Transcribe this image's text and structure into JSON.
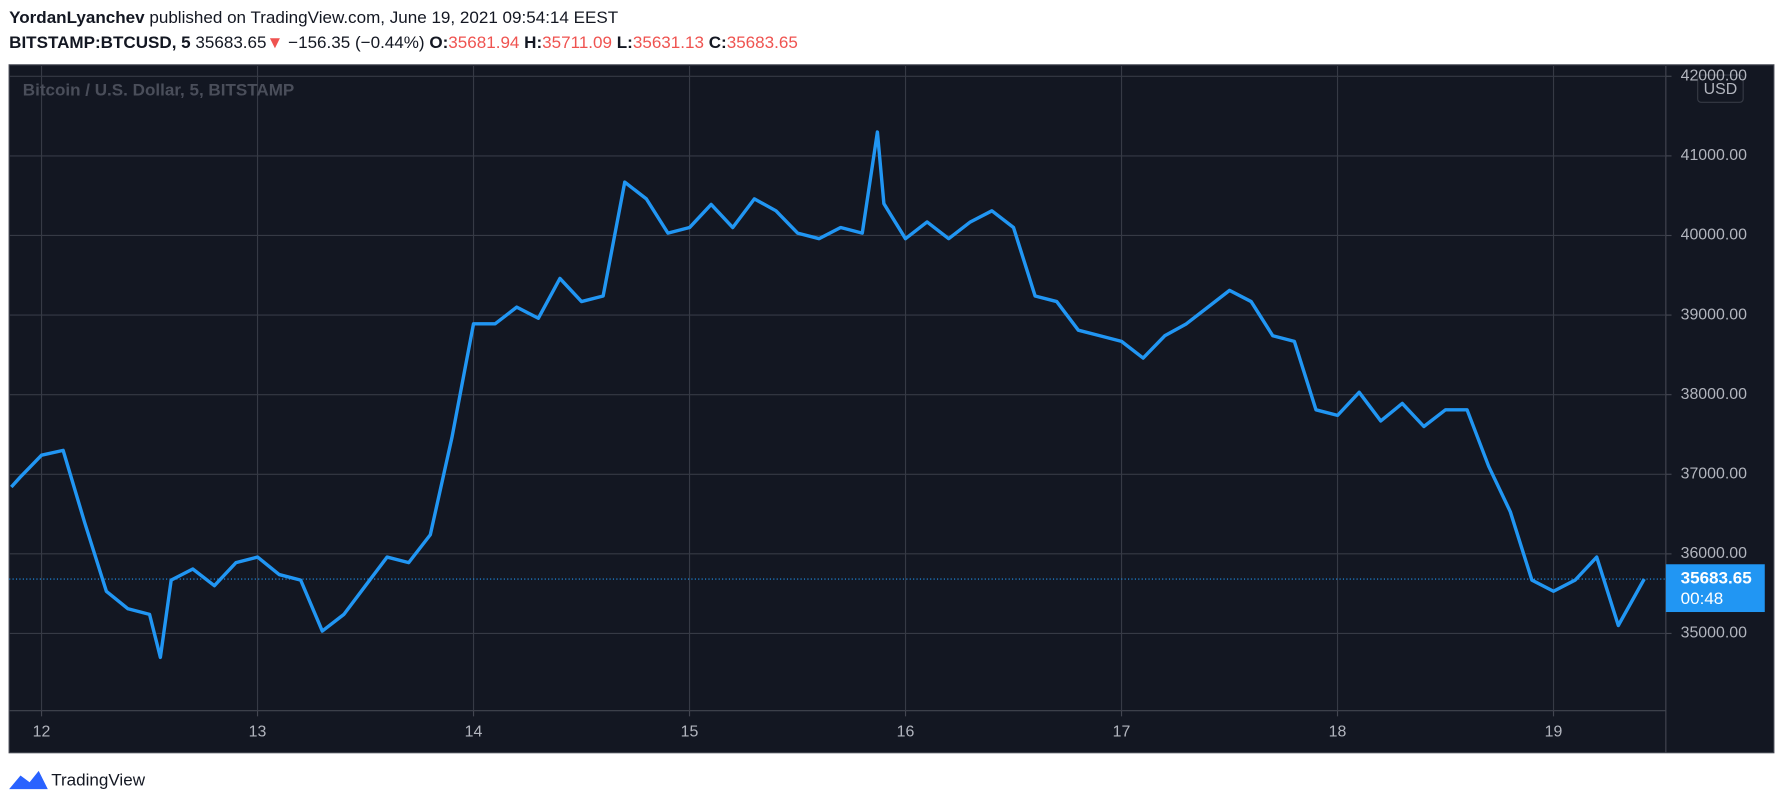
{
  "header": {
    "author": "YordanLyanchev",
    "published": "published on TradingView.com, June 19, 2021 09:54:14 EEST",
    "symbol": "BITSTAMP:BTCUSD, 5",
    "price": "35683.65",
    "arrow": "▼",
    "change": "−156.35 (−0.44%)",
    "open_label": "O:",
    "open": "35681.94",
    "high_label": "H:",
    "high": "35711.09",
    "low_label": "L:",
    "low": "35631.13",
    "close_label": "C:",
    "close": "35683.65"
  },
  "footer": {
    "brand": "TradingView"
  },
  "chart_data": {
    "type": "line",
    "title": "Bitcoin / U.S. Dollar, 5, BITSTAMP",
    "currency": "USD",
    "color": "#2196f3",
    "grid": true,
    "x": [
      11.86,
      11.9,
      12.0,
      12.1,
      12.2,
      12.3,
      12.4,
      12.5,
      12.55,
      12.6,
      12.7,
      12.8,
      12.9,
      13.0,
      13.1,
      13.2,
      13.3,
      13.4,
      13.5,
      13.6,
      13.7,
      13.8,
      13.9,
      14.0,
      14.1,
      14.2,
      14.3,
      14.4,
      14.5,
      14.6,
      14.7,
      14.8,
      14.9,
      15.0,
      15.1,
      15.2,
      15.3,
      15.4,
      15.5,
      15.6,
      15.7,
      15.8,
      15.87,
      15.9,
      16.0,
      16.1,
      16.2,
      16.3,
      16.4,
      16.5,
      16.6,
      16.7,
      16.8,
      16.9,
      17.0,
      17.1,
      17.2,
      17.3,
      17.4,
      17.5,
      17.6,
      17.7,
      17.8,
      17.9,
      18.0,
      18.1,
      18.2,
      18.3,
      18.4,
      18.5,
      18.6,
      18.7,
      18.8,
      18.9,
      19.0,
      19.1,
      19.2,
      19.3,
      19.42
    ],
    "values": [
      36840,
      36960,
      37240,
      37300,
      36390,
      35530,
      35310,
      35240,
      34700,
      35670,
      35810,
      35600,
      35890,
      35960,
      35740,
      35670,
      35030,
      35240,
      35600,
      35960,
      35890,
      36240,
      37460,
      38890,
      38890,
      39100,
      38960,
      39460,
      39170,
      39240,
      40670,
      40460,
      40030,
      40100,
      40390,
      40100,
      40460,
      40310,
      40030,
      39960,
      40100,
      40030,
      41300,
      40400,
      39960,
      40170,
      39960,
      40170,
      40310,
      40100,
      39240,
      39170,
      38810,
      38740,
      38670,
      38460,
      38740,
      38890,
      39100,
      39310,
      39170,
      38740,
      38670,
      37810,
      37740,
      38030,
      37670,
      37890,
      37600,
      37810,
      37810,
      37100,
      36530,
      35670,
      35530,
      35670,
      35960,
      35100,
      35683.65
    ],
    "last_value": 35683.65,
    "countdown": "00:48",
    "xlim": [
      11.85,
      19.52
    ],
    "xticks": [
      12,
      13,
      14,
      15,
      16,
      17,
      18,
      19
    ],
    "ylim": [
      34030,
      42130
    ],
    "yticks": [
      {
        "value": 35000,
        "label": "35000.00"
      },
      {
        "value": 36000,
        "label": "36000.00"
      },
      {
        "value": 37000,
        "label": "37000.00"
      },
      {
        "value": 38000,
        "label": "38000.00"
      },
      {
        "value": 39000,
        "label": "39000.00"
      },
      {
        "value": 40000,
        "label": "40000.00"
      },
      {
        "value": 41000,
        "label": "41000.00"
      },
      {
        "value": 42000,
        "label": "42000.00"
      }
    ]
  }
}
